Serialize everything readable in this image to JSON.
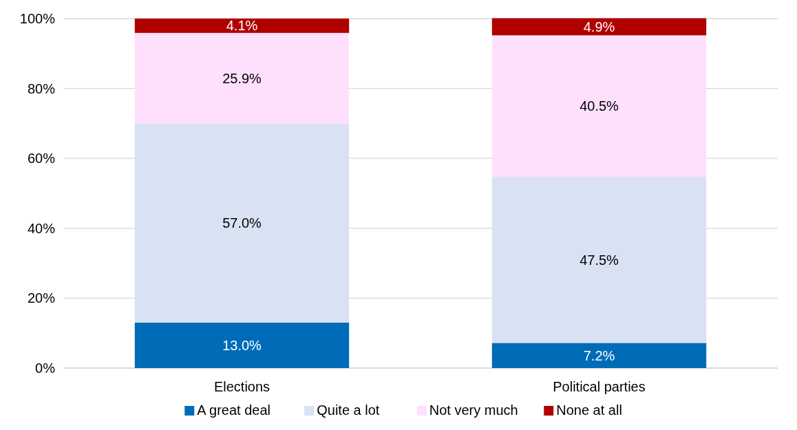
{
  "chart_data": {
    "type": "bar",
    "stacked": true,
    "categories": [
      "Elections",
      "Political parties"
    ],
    "series": [
      {
        "name": "A great deal",
        "color": "#006cb8",
        "values": [
          13.0,
          7.2
        ],
        "value_labels": [
          "13.0%",
          "7.2%"
        ]
      },
      {
        "name": "Quite a lot",
        "color": "#d9e2f3",
        "values": [
          57.0,
          47.5
        ],
        "value_labels": [
          "57.0%",
          "47.5%"
        ]
      },
      {
        "name": "Not very much",
        "color": "#ffe0fc",
        "values": [
          25.9,
          40.5
        ],
        "value_labels": [
          "25.9%",
          "40.5%"
        ]
      },
      {
        "name": "None at all",
        "color": "#b00000",
        "values": [
          4.1,
          4.9
        ],
        "value_labels": [
          "4.1%",
          "4.9%"
        ]
      }
    ],
    "ylim": [
      0,
      100
    ],
    "yticks": [
      {
        "value": 0,
        "label": "0%"
      },
      {
        "value": 20,
        "label": "20%"
      },
      {
        "value": 40,
        "label": "40%"
      },
      {
        "value": 60,
        "label": "60%"
      },
      {
        "value": 80,
        "label": "80%"
      },
      {
        "value": 100,
        "label": "100%"
      }
    ],
    "grid": "y",
    "legend": "bottom"
  }
}
